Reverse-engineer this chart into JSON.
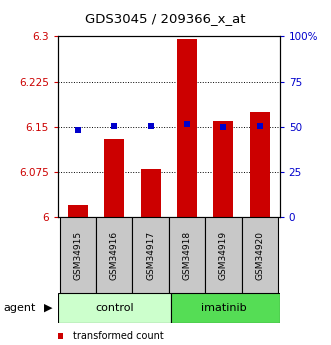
{
  "title": "GDS3045 / 209366_x_at",
  "samples": [
    "GSM34915",
    "GSM34916",
    "GSM34917",
    "GSM34918",
    "GSM34919",
    "GSM34920"
  ],
  "red_values": [
    6.02,
    6.13,
    6.08,
    6.295,
    6.16,
    6.175
  ],
  "blue_values": [
    6.145,
    6.152,
    6.151,
    6.155,
    6.15,
    6.151
  ],
  "ylim_left": [
    6.0,
    6.3
  ],
  "ylim_right": [
    0,
    100
  ],
  "yticks_left": [
    6.0,
    6.075,
    6.15,
    6.225,
    6.3
  ],
  "yticks_right": [
    0,
    25,
    50,
    75,
    100
  ],
  "ytick_labels_left": [
    "6",
    "6.075",
    "6.15",
    "6.225",
    "6.3"
  ],
  "ytick_labels_right": [
    "0",
    "25",
    "50",
    "75",
    "100%"
  ],
  "left_axis_color": "#cc0000",
  "right_axis_color": "#0000cc",
  "bar_color": "#cc0000",
  "dot_color": "#0000cc",
  "control_color": "#ccffcc",
  "imatinib_color": "#55dd55",
  "bar_width": 0.55,
  "base_value": 6.0,
  "figsize": [
    3.31,
    3.45
  ],
  "dpi": 100
}
